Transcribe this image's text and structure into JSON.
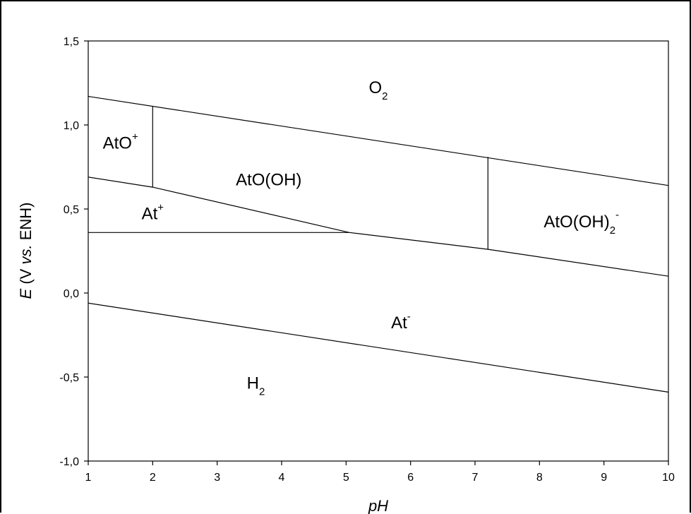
{
  "chart_data": {
    "type": "line",
    "title": "",
    "xlabel": "pH",
    "ylabel": {
      "italic": "E",
      "rest1": " (V ",
      "vs": "vs.",
      "rest2": " ENH)"
    },
    "xlim": [
      1,
      10
    ],
    "ylim": [
      -1.0,
      1.5
    ],
    "x_ticks": [
      1,
      2,
      3,
      4,
      5,
      6,
      7,
      8,
      9,
      10
    ],
    "x_tick_labels": [
      "1",
      "2",
      "3",
      "4",
      "5",
      "6",
      "7",
      "8",
      "9",
      "10"
    ],
    "y_ticks": [
      1.5,
      1.0,
      0.5,
      0.0,
      -0.5,
      -1.0
    ],
    "y_tick_labels": [
      "1,5",
      "1,0",
      "0,5",
      "0,0",
      "-0,5",
      "-1,0"
    ],
    "grid": false,
    "series": [
      {
        "points": [
          [
            1,
            1.17
          ],
          [
            10,
            0.64
          ]
        ]
      },
      {
        "points": [
          [
            1,
            -0.06
          ],
          [
            10,
            -0.59
          ]
        ]
      },
      {
        "points": [
          [
            1,
            0.69
          ],
          [
            2,
            0.63
          ],
          [
            5.05,
            0.36
          ],
          [
            7.2,
            0.26
          ],
          [
            10,
            0.1
          ]
        ]
      },
      {
        "points": [
          [
            1,
            0.36
          ],
          [
            5.05,
            0.36
          ]
        ]
      },
      {
        "points": [
          [
            2,
            1.11
          ],
          [
            2,
            0.63
          ]
        ]
      },
      {
        "points": [
          [
            7.2,
            0.81
          ],
          [
            7.2,
            0.26
          ]
        ]
      }
    ],
    "region_labels": [
      {
        "base": "O",
        "sub": "2",
        "sup": "",
        "x": 5.5,
        "y": 1.19
      },
      {
        "base": "AtO",
        "sub": "",
        "sup": "+",
        "x": 1.5,
        "y": 0.86
      },
      {
        "base": "AtO(OH)",
        "sub": "",
        "sup": "",
        "x": 3.8,
        "y": 0.64
      },
      {
        "base": "At",
        "sub": "",
        "sup": "+",
        "x": 2.0,
        "y": 0.44
      },
      {
        "base": "AtO(OH)",
        "sub": "2",
        "sup": "-",
        "x": 8.65,
        "y": 0.39
      },
      {
        "base": "At",
        "sub": "",
        "sup": "-",
        "x": 5.85,
        "y": -0.21
      },
      {
        "base": "H",
        "sub": "2",
        "sup": "",
        "x": 3.6,
        "y": -0.57
      }
    ]
  }
}
